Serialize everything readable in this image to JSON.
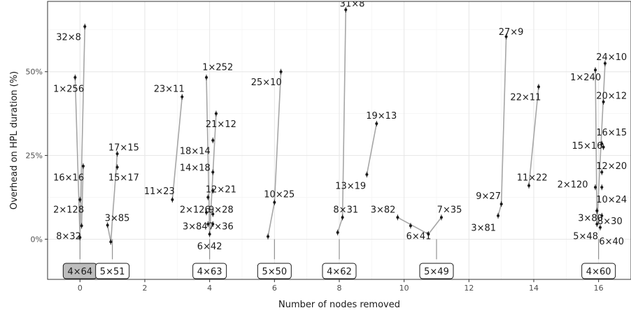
{
  "chart_data": {
    "type": "scatter",
    "xlabel": "Number of nodes removed",
    "ylabel": "Overhead on HPL duration (%)",
    "xlim": [
      -1,
      17
    ],
    "ylim": [
      -12,
      71
    ],
    "x_ticks": [
      0,
      2,
      4,
      6,
      8,
      10,
      12,
      14,
      16
    ],
    "x_tick_labels": [
      "0",
      "2",
      "4",
      "6",
      "8",
      "10",
      "12",
      "14",
      "16"
    ],
    "y_ticks": [
      0,
      25,
      50
    ],
    "y_tick_labels": [
      "0%",
      "25%",
      "50%"
    ],
    "grid": true,
    "groups": [
      {
        "label": "4×64",
        "x": 0,
        "highlight": true
      },
      {
        "label": "5×51",
        "x": 1,
        "highlight": false
      },
      {
        "label": "4×63",
        "x": 4,
        "highlight": false
      },
      {
        "label": "5×50",
        "x": 6,
        "highlight": false
      },
      {
        "label": "4×62",
        "x": 8,
        "highlight": false
      },
      {
        "label": "5×49",
        "x": 11,
        "highlight": false
      },
      {
        "label": "4×60",
        "x": 16,
        "highlight": false
      }
    ],
    "points": [
      {
        "label": "8×32",
        "x": 0.0,
        "y": 0.5,
        "lx": -0.35,
        "ly": 1.0
      },
      {
        "label": "2×128",
        "x": 0.0,
        "y": 11.8,
        "lx": -0.35,
        "ly": 9.0
      },
      {
        "label": "16×16",
        "x": 0.1,
        "y": 21.8,
        "lx": -0.35,
        "ly": 18.5
      },
      {
        "label": "1×256",
        "x": -0.15,
        "y": 48.3,
        "lx": -0.35,
        "ly": 45.0
      },
      {
        "label": "32×8",
        "x": 0.15,
        "y": 63.5,
        "lx": -0.35,
        "ly": 60.5
      },
      {
        "label": "8×32b",
        "x": 0.05,
        "y": 4.0,
        "lx": null,
        "ly": null
      },
      {
        "label": "3×85",
        "x": 0.95,
        "y": -0.8,
        "lx": 1.15,
        "ly": 6.5
      },
      {
        "label": "15×17",
        "x": 1.15,
        "y": 21.5,
        "lx": 1.35,
        "ly": 18.5
      },
      {
        "label": "17×15",
        "x": 1.15,
        "y": 25.5,
        "lx": 1.35,
        "ly": 27.5
      },
      {
        "label": "5×51b",
        "x": 0.85,
        "y": 4.2,
        "lx": null,
        "ly": null
      },
      {
        "label": "11×23",
        "x": 2.85,
        "y": 11.8,
        "lx": 2.45,
        "ly": 14.5
      },
      {
        "label": "23×11",
        "x": 3.15,
        "y": 42.5,
        "lx": 2.75,
        "ly": 45.0
      },
      {
        "label": "3×84",
        "x": 3.95,
        "y": 4.5,
        "lx": 3.55,
        "ly": 4.0
      },
      {
        "label": "6×42",
        "x": 4.0,
        "y": 1.5,
        "lx": 4.0,
        "ly": -2.0
      },
      {
        "label": "7×36",
        "x": 4.1,
        "y": 4.5,
        "lx": 4.35,
        "ly": 4.0
      },
      {
        "label": "2×126",
        "x": 3.9,
        "y": 8.0,
        "lx": 3.55,
        "ly": 9.0
      },
      {
        "label": "9×28",
        "x": 4.1,
        "y": 7.5,
        "lx": 4.35,
        "ly": 9.0
      },
      {
        "label": "12×21",
        "x": 4.1,
        "y": 14.5,
        "lx": 4.35,
        "ly": 15.0
      },
      {
        "label": "14×18",
        "x": 3.95,
        "y": 12.5,
        "lx": 3.55,
        "ly": 21.5
      },
      {
        "label": "18×14",
        "x": 4.1,
        "y": 20.0,
        "lx": 3.55,
        "ly": 26.5
      },
      {
        "label": "21×12",
        "x": 4.1,
        "y": 29.5,
        "lx": 4.35,
        "ly": 34.5
      },
      {
        "label": "1×252",
        "x": 3.9,
        "y": 48.3,
        "lx": 4.25,
        "ly": 51.5
      },
      {
        "label": "4×63b",
        "x": 4.2,
        "y": 37.5,
        "lx": null,
        "ly": null
      },
      {
        "label": "10×25",
        "x": 6.0,
        "y": 11.0,
        "lx": 6.15,
        "ly": 13.5
      },
      {
        "label": "25×10",
        "x": 6.2,
        "y": 50.0,
        "lx": 5.75,
        "ly": 47.0
      },
      {
        "label": "5×50b",
        "x": 5.8,
        "y": 0.8,
        "lx": null,
        "ly": null
      },
      {
        "label": "8×31",
        "x": 8.1,
        "y": 6.5,
        "lx": 8.2,
        "ly": 9.0
      },
      {
        "label": "13×19",
        "x": 8.85,
        "y": 19.3,
        "lx": 8.35,
        "ly": 16.0
      },
      {
        "label": "19×13",
        "x": 9.15,
        "y": 34.5,
        "lx": 9.3,
        "ly": 37.0
      },
      {
        "label": "31×8",
        "x": 8.2,
        "y": 68.5,
        "lx": 8.4,
        "ly": 70.5
      },
      {
        "label": "4×62b",
        "x": 7.95,
        "y": 2.0,
        "lx": null,
        "ly": null
      },
      {
        "label": "3×82",
        "x": 9.8,
        "y": 6.5,
        "lx": 9.35,
        "ly": 9.0
      },
      {
        "label": "6×41",
        "x": 10.75,
        "y": 1.5,
        "lx": 10.45,
        "ly": 1.0
      },
      {
        "label": "7×35",
        "x": 11.15,
        "y": 6.5,
        "lx": 11.4,
        "ly": 9.0
      },
      {
        "label": "5×49b",
        "x": 10.2,
        "y": 4.0,
        "lx": null,
        "ly": null
      },
      {
        "label": "3×81",
        "x": 12.9,
        "y": 7.0,
        "lx": 12.45,
        "ly": 3.5
      },
      {
        "label": "9×27",
        "x": 13.0,
        "y": 10.5,
        "lx": 12.6,
        "ly": 13.0
      },
      {
        "label": "27×9",
        "x": 13.15,
        "y": 60.5,
        "lx": 13.3,
        "ly": 62.0
      },
      {
        "label": "11×22",
        "x": 13.85,
        "y": 16.0,
        "lx": 13.95,
        "ly": 18.5
      },
      {
        "label": "22×11",
        "x": 14.15,
        "y": 45.5,
        "lx": 13.75,
        "ly": 42.5
      },
      {
        "label": "2×120",
        "x": 15.9,
        "y": 15.5,
        "lx": 15.2,
        "ly": 16.5
      },
      {
        "label": "15×16",
        "x": 16.1,
        "y": 28.5,
        "lx": 15.65,
        "ly": 28.0
      },
      {
        "label": "1×240",
        "x": 15.9,
        "y": 50.5,
        "lx": 15.6,
        "ly": 48.5
      },
      {
        "label": "24×10",
        "x": 16.2,
        "y": 52.5,
        "lx": 16.4,
        "ly": 54.5
      },
      {
        "label": "20×12",
        "x": 16.15,
        "y": 41.0,
        "lx": 16.4,
        "ly": 43.0
      },
      {
        "label": "16×15",
        "x": 16.15,
        "y": 27.5,
        "lx": 16.4,
        "ly": 32.0
      },
      {
        "label": "12×20",
        "x": 16.1,
        "y": 20.0,
        "lx": 16.4,
        "ly": 22.0
      },
      {
        "label": "10×24",
        "x": 16.1,
        "y": 15.5,
        "lx": 16.4,
        "ly": 12.0
      },
      {
        "label": "3×80",
        "x": 15.95,
        "y": 8.5,
        "lx": 15.75,
        "ly": 6.5
      },
      {
        "label": "8×30",
        "x": 16.1,
        "y": 7.0,
        "lx": 16.35,
        "ly": 5.5
      },
      {
        "label": "5×48",
        "x": 15.95,
        "y": 4.5,
        "lx": 15.6,
        "ly": 1.0
      },
      {
        "label": "6×40",
        "x": 16.05,
        "y": 3.5,
        "lx": 16.4,
        "ly": -0.5
      }
    ],
    "lines": [
      [
        0,
        0.0,
        0.5,
        0.15,
        63.5
      ],
      [
        0,
        0.0,
        0.5,
        -0.15,
        48.3
      ],
      [
        0,
        0.05,
        4.0,
        0.1,
        21.8
      ],
      [
        1,
        0.85,
        4.2,
        0.95,
        -0.8
      ],
      [
        1,
        0.95,
        -0.8,
        1.15,
        25.5
      ],
      [
        4,
        3.9,
        48.3,
        4.0,
        1.5
      ],
      [
        4,
        4.0,
        1.5,
        4.2,
        37.5
      ],
      [
        4,
        2.85,
        11.8,
        3.15,
        42.5
      ],
      [
        6,
        5.8,
        0.8,
        6.0,
        11.0
      ],
      [
        6,
        6.0,
        11.0,
        6.2,
        50.0
      ],
      [
        8,
        7.95,
        2.0,
        8.1,
        6.5
      ],
      [
        8,
        8.1,
        6.5,
        8.2,
        68.5
      ],
      [
        8,
        8.85,
        19.3,
        9.15,
        34.5
      ],
      [
        11,
        9.8,
        6.5,
        10.75,
        1.5
      ],
      [
        11,
        10.75,
        1.5,
        11.15,
        6.5
      ],
      [
        13,
        12.9,
        7.0,
        13.0,
        10.5
      ],
      [
        13,
        13.0,
        10.5,
        13.15,
        60.5
      ],
      [
        14,
        13.85,
        16.0,
        14.15,
        45.5
      ],
      [
        16,
        15.9,
        50.5,
        15.95,
        4.5
      ],
      [
        16,
        15.95,
        4.5,
        16.2,
        52.5
      ]
    ]
  }
}
